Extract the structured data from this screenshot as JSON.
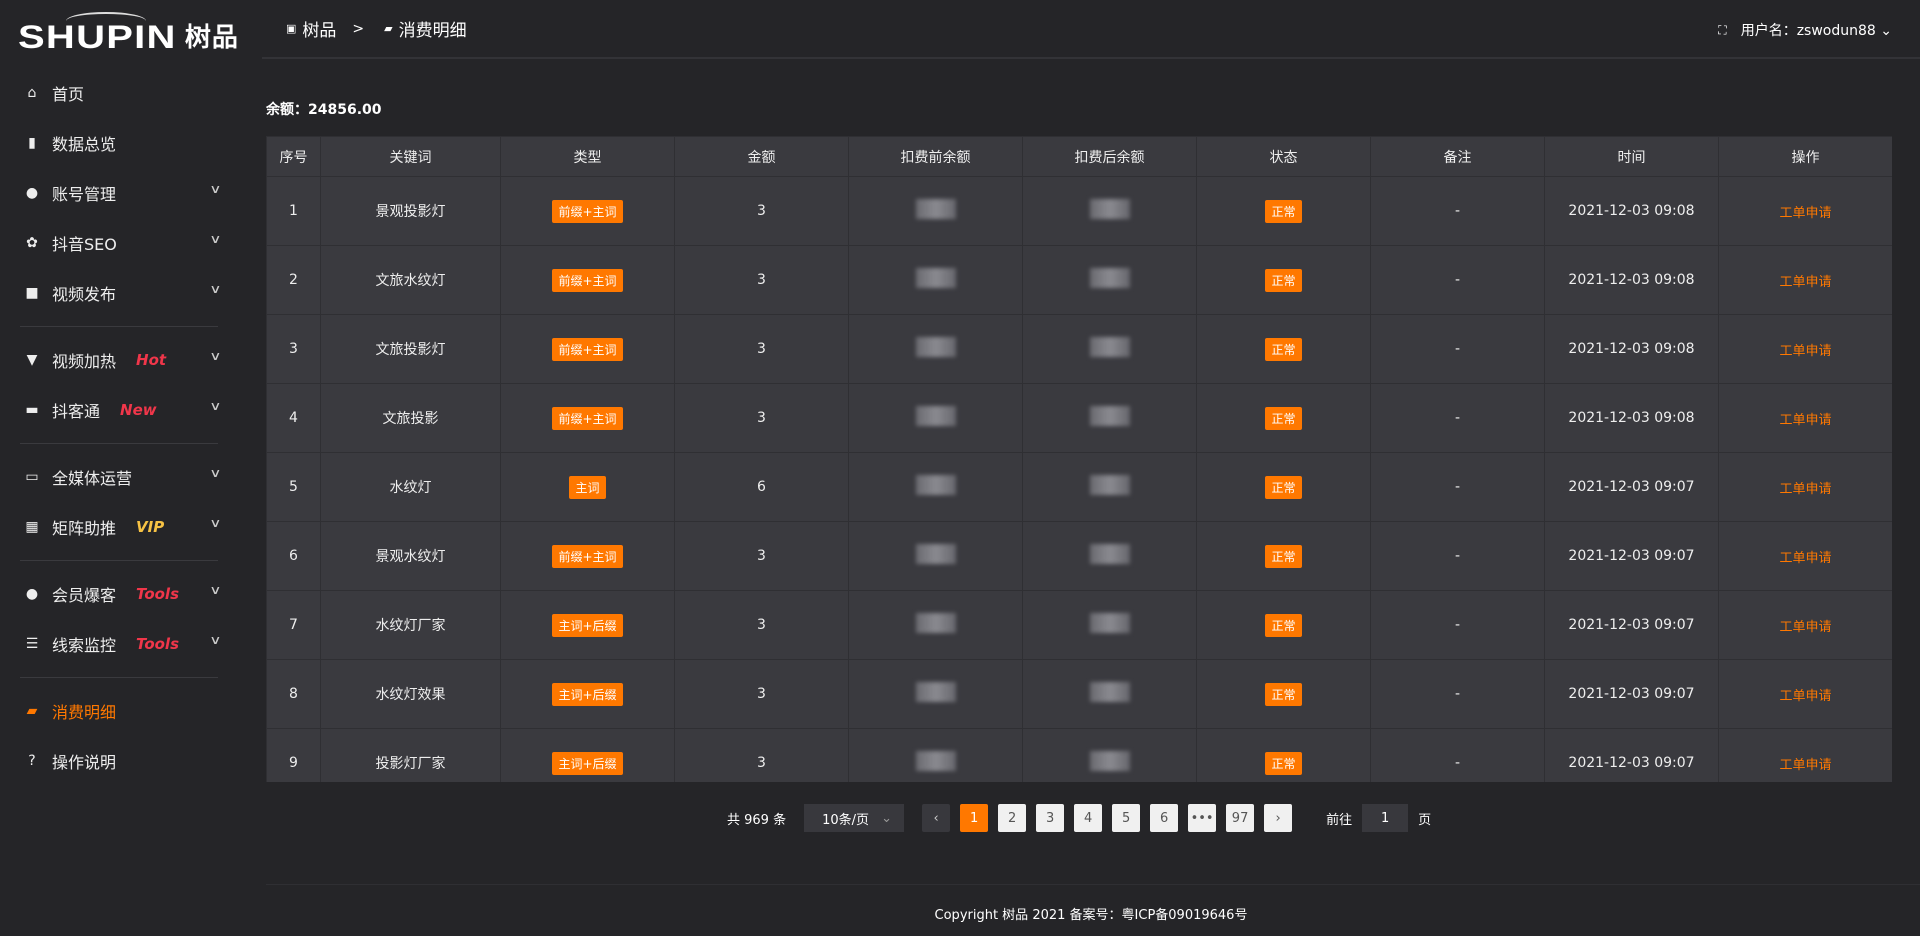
{
  "logo": {
    "en": "SHUPIN",
    "cn": "树品"
  },
  "sidebar": {
    "items": [
      {
        "label": "首页",
        "icon": "home-icon",
        "glyph": "⌂"
      },
      {
        "label": "数据总览",
        "icon": "bar-chart-icon",
        "glyph": "▮"
      },
      {
        "label": "账号管理",
        "icon": "user-icon",
        "glyph": "●",
        "chev": true
      },
      {
        "label": "抖音SEO",
        "icon": "gear-icon",
        "glyph": "✿",
        "chev": true
      },
      {
        "label": "视频发布",
        "icon": "video-camera-icon",
        "glyph": "■",
        "chev": true
      },
      {
        "divider": true
      },
      {
        "label": "视频加热",
        "icon": "flag-icon",
        "glyph": "▼",
        "tag": "Hot",
        "tag_color": "#f0364a",
        "chev": true
      },
      {
        "label": "抖客通",
        "icon": "chat-icon",
        "glyph": "▬",
        "tag": "New",
        "tag_color": "#f0364a",
        "chev": true
      },
      {
        "divider": true
      },
      {
        "label": "全媒体运营",
        "icon": "monitor-icon",
        "glyph": "▭",
        "chev": true
      },
      {
        "label": "矩阵助推",
        "icon": "grid-icon",
        "glyph": "▦",
        "tag": "VIP",
        "tag_color": "#f6c244",
        "chev": true
      },
      {
        "divider": true
      },
      {
        "label": "会员爆客",
        "icon": "user-icon",
        "glyph": "●",
        "tag": "Tools",
        "tag_color": "#f0364a",
        "chev": true
      },
      {
        "label": "线索监控",
        "icon": "sliders-icon",
        "glyph": "☰",
        "tag": "Tools",
        "tag_color": "#f0364a",
        "chev": true
      },
      {
        "divider": true
      },
      {
        "label": "消费明细",
        "icon": "wallet-icon",
        "glyph": "▰",
        "active": true
      },
      {
        "label": "操作说明",
        "icon": "question-icon",
        "glyph": "?"
      }
    ]
  },
  "header": {
    "breadcrumb": [
      "树品",
      "消费明细"
    ],
    "sep": ">",
    "user_label": "用户名：",
    "username": "zswodun88"
  },
  "balance": {
    "label": "余额：",
    "value": "24856.00"
  },
  "table": {
    "columns": [
      "序号",
      "关键词",
      "类型",
      "金额",
      "扣费前余额",
      "扣费后余额",
      "状态",
      "备注",
      "时间",
      "操作"
    ],
    "rows": [
      [
        "1",
        "景观投影灯",
        "前缀+主词",
        "3",
        "",
        "",
        "正常",
        "-",
        "2021-12-03 09:08",
        "工单申请"
      ],
      [
        "2",
        "文旅水纹灯",
        "前缀+主词",
        "3",
        "",
        "",
        "正常",
        "-",
        "2021-12-03 09:08",
        "工单申请"
      ],
      [
        "3",
        "文旅投影灯",
        "前缀+主词",
        "3",
        "",
        "",
        "正常",
        "-",
        "2021-12-03 09:08",
        "工单申请"
      ],
      [
        "4",
        "文旅投影",
        "前缀+主词",
        "3",
        "",
        "",
        "正常",
        "-",
        "2021-12-03 09:08",
        "工单申请"
      ],
      [
        "5",
        "水纹灯",
        "主词",
        "6",
        "",
        "",
        "正常",
        "-",
        "2021-12-03 09:07",
        "工单申请"
      ],
      [
        "6",
        "景观水纹灯",
        "前缀+主词",
        "3",
        "",
        "",
        "正常",
        "-",
        "2021-12-03 09:07",
        "工单申请"
      ],
      [
        "7",
        "水纹灯厂家",
        "主词+后缀",
        "3",
        "",
        "",
        "正常",
        "-",
        "2021-12-03 09:07",
        "工单申请"
      ],
      [
        "8",
        "水纹灯效果",
        "主词+后缀",
        "3",
        "",
        "",
        "正常",
        "-",
        "2021-12-03 09:07",
        "工单申请"
      ],
      [
        "9",
        "投影灯厂家",
        "主词+后缀",
        "3",
        "",
        "",
        "正常",
        "-",
        "2021-12-03 09:07",
        "工单申请"
      ]
    ]
  },
  "pagination": {
    "total": "共 969 条",
    "page_size": "10条/页",
    "pages": [
      "1",
      "2",
      "3",
      "4",
      "5",
      "6",
      "•••",
      "97"
    ],
    "current": "1",
    "goto_label": "前往",
    "goto_value": "1",
    "page_unit": "页"
  },
  "footer": {
    "text": "Copyright 树品 2021 备案号：粤ICP备09019646号"
  },
  "colors": {
    "accent": "#ff7800",
    "bg": "#252528",
    "table": "#3a3a3f"
  }
}
